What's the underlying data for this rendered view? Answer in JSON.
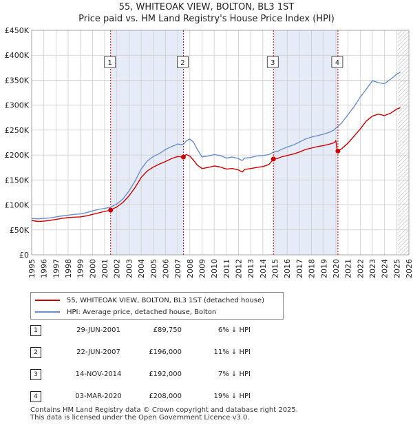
{
  "title_line1": "55, WHITEOAK VIEW, BOLTON, BL3 1ST",
  "title_line2": "Price paid vs. HM Land Registry's House Price Index (HPI)",
  "colors": {
    "property": "#cc0000",
    "hpi": "#6b8fcc",
    "shade": "#e6ecf7",
    "marker_line": "#cc0000",
    "grid": "#cccccc"
  },
  "chart_data": {
    "type": "line",
    "x_range": [
      1995,
      2026
    ],
    "ylim": [
      0,
      450000
    ],
    "y_ticks": [
      {
        "value": 0,
        "label": "£0"
      },
      {
        "value": 50000,
        "label": "£50K"
      },
      {
        "value": 100000,
        "label": "£100K"
      },
      {
        "value": 150000,
        "label": "£150K"
      },
      {
        "value": 200000,
        "label": "£200K"
      },
      {
        "value": 250000,
        "label": "£250K"
      },
      {
        "value": 300000,
        "label": "£300K"
      },
      {
        "value": 350000,
        "label": "£350K"
      },
      {
        "value": 400000,
        "label": "£400K"
      },
      {
        "value": 450000,
        "label": "£450K"
      }
    ],
    "x_ticks": [
      "1995",
      "1996",
      "1997",
      "1998",
      "1999",
      "2000",
      "2001",
      "2002",
      "2003",
      "2004",
      "2005",
      "2006",
      "2007",
      "2008",
      "2009",
      "2010",
      "2011",
      "2012",
      "2013",
      "2014",
      "2015",
      "2016",
      "2017",
      "2018",
      "2019",
      "2020",
      "2021",
      "2022",
      "2023",
      "2024",
      "2025",
      "2026"
    ],
    "grid": true,
    "legend_position": "below",
    "shaded_ranges": [
      [
        2001.49,
        2007.47
      ],
      [
        2014.87,
        2020.17
      ]
    ],
    "hatched_from": 2025.1,
    "series": [
      {
        "name": "55, WHITEOAK VIEW, BOLTON, BL3 1ST (detached house)",
        "color": "#cc0000",
        "points": [
          [
            1995.0,
            69000
          ],
          [
            1995.5,
            67000
          ],
          [
            1996.0,
            67500
          ],
          [
            1996.5,
            69000
          ],
          [
            1997.0,
            71000
          ],
          [
            1997.5,
            73000
          ],
          [
            1998.0,
            74500
          ],
          [
            1998.5,
            75500
          ],
          [
            1999.0,
            76000
          ],
          [
            1999.5,
            78000
          ],
          [
            2000.0,
            81000
          ],
          [
            2000.5,
            84000
          ],
          [
            2001.0,
            87000
          ],
          [
            2001.49,
            89750
          ],
          [
            2002.0,
            96000
          ],
          [
            2002.5,
            105000
          ],
          [
            2003.0,
            118000
          ],
          [
            2003.5,
            135000
          ],
          [
            2004.0,
            155000
          ],
          [
            2004.5,
            168000
          ],
          [
            2005.0,
            176000
          ],
          [
            2005.5,
            182000
          ],
          [
            2006.0,
            187000
          ],
          [
            2006.5,
            193000
          ],
          [
            2007.0,
            197000
          ],
          [
            2007.47,
            196000
          ],
          [
            2007.7,
            201000
          ],
          [
            2008.0,
            198000
          ],
          [
            2008.3,
            190000
          ],
          [
            2008.6,
            180000
          ],
          [
            2009.0,
            173000
          ],
          [
            2009.5,
            175000
          ],
          [
            2010.0,
            178000
          ],
          [
            2010.5,
            176000
          ],
          [
            2011.0,
            172000
          ],
          [
            2011.5,
            173000
          ],
          [
            2012.0,
            170000
          ],
          [
            2012.3,
            166000
          ],
          [
            2012.5,
            171000
          ],
          [
            2013.0,
            173000
          ],
          [
            2013.5,
            175000
          ],
          [
            2014.0,
            177000
          ],
          [
            2014.5,
            181000
          ],
          [
            2014.87,
            192000
          ],
          [
            2015.2,
            193000
          ],
          [
            2015.5,
            196000
          ],
          [
            2016.0,
            199000
          ],
          [
            2016.5,
            202000
          ],
          [
            2017.0,
            206000
          ],
          [
            2017.5,
            211000
          ],
          [
            2018.0,
            214000
          ],
          [
            2018.5,
            217000
          ],
          [
            2019.0,
            219000
          ],
          [
            2019.5,
            222000
          ],
          [
            2019.9,
            225000
          ],
          [
            2020.0,
            229000
          ],
          [
            2020.1,
            212000
          ],
          [
            2020.17,
            208000
          ],
          [
            2020.5,
            213000
          ],
          [
            2021.0,
            224000
          ],
          [
            2021.5,
            238000
          ],
          [
            2022.0,
            252000
          ],
          [
            2022.5,
            268000
          ],
          [
            2023.0,
            278000
          ],
          [
            2023.5,
            282000
          ],
          [
            2024.0,
            279000
          ],
          [
            2024.5,
            284000
          ],
          [
            2025.0,
            292000
          ],
          [
            2025.3,
            295000
          ]
        ]
      },
      {
        "name": "HPI: Average price, detached house, Bolton",
        "color": "#6b8fcc",
        "points": [
          [
            1995.0,
            73000
          ],
          [
            1995.5,
            72000
          ],
          [
            1996.0,
            73000
          ],
          [
            1996.5,
            74000
          ],
          [
            1997.0,
            76000
          ],
          [
            1997.5,
            78000
          ],
          [
            1998.0,
            79500
          ],
          [
            1998.5,
            81000
          ],
          [
            1999.0,
            82000
          ],
          [
            1999.5,
            84500
          ],
          [
            2000.0,
            88000
          ],
          [
            2000.5,
            91000
          ],
          [
            2001.0,
            93000
          ],
          [
            2001.49,
            95500
          ],
          [
            2002.0,
            102000
          ],
          [
            2002.5,
            112000
          ],
          [
            2003.0,
            128000
          ],
          [
            2003.5,
            148000
          ],
          [
            2004.0,
            172000
          ],
          [
            2004.5,
            188000
          ],
          [
            2005.0,
            197000
          ],
          [
            2005.5,
            203000
          ],
          [
            2006.0,
            211000
          ],
          [
            2006.5,
            217000
          ],
          [
            2007.0,
            222000
          ],
          [
            2007.47,
            221000
          ],
          [
            2007.7,
            228000
          ],
          [
            2008.0,
            232000
          ],
          [
            2008.3,
            226000
          ],
          [
            2008.6,
            212000
          ],
          [
            2009.0,
            196000
          ],
          [
            2009.5,
            198000
          ],
          [
            2010.0,
            201000
          ],
          [
            2010.5,
            199000
          ],
          [
            2011.0,
            194000
          ],
          [
            2011.5,
            196000
          ],
          [
            2012.0,
            193000
          ],
          [
            2012.3,
            189000
          ],
          [
            2012.5,
            194000
          ],
          [
            2013.0,
            195000
          ],
          [
            2013.5,
            198000
          ],
          [
            2014.0,
            199000
          ],
          [
            2014.5,
            201000
          ],
          [
            2014.87,
            206000
          ],
          [
            2015.2,
            207000
          ],
          [
            2015.5,
            211000
          ],
          [
            2016.0,
            216000
          ],
          [
            2016.5,
            220000
          ],
          [
            2017.0,
            226000
          ],
          [
            2017.5,
            232000
          ],
          [
            2018.0,
            236000
          ],
          [
            2018.5,
            239000
          ],
          [
            2019.0,
            242000
          ],
          [
            2019.5,
            246000
          ],
          [
            2019.9,
            251000
          ],
          [
            2020.0,
            254000
          ],
          [
            2020.1,
            256000
          ],
          [
            2020.17,
            257000
          ],
          [
            2020.5,
            265000
          ],
          [
            2021.0,
            281000
          ],
          [
            2021.5,
            297000
          ],
          [
            2022.0,
            316000
          ],
          [
            2022.5,
            332000
          ],
          [
            2023.0,
            349000
          ],
          [
            2023.5,
            345000
          ],
          [
            2024.0,
            343000
          ],
          [
            2024.5,
            352000
          ],
          [
            2025.0,
            362000
          ],
          [
            2025.3,
            366000
          ]
        ]
      }
    ],
    "sales": [
      {
        "num": "1",
        "x": 2001.49,
        "price": 89750
      },
      {
        "num": "2",
        "x": 2007.47,
        "price": 196000
      },
      {
        "num": "3",
        "x": 2014.87,
        "price": 192000
      },
      {
        "num": "4",
        "x": 2020.17,
        "price": 208000
      }
    ]
  },
  "legend": {
    "property_label": "55, WHITEOAK VIEW, BOLTON, BL3 1ST (detached house)",
    "hpi_label": "HPI: Average price, detached house, Bolton"
  },
  "transactions": [
    {
      "num": "1",
      "date": "29-JUN-2001",
      "price": "£89,750",
      "hpi": "6% ↓ HPI"
    },
    {
      "num": "2",
      "date": "22-JUN-2007",
      "price": "£196,000",
      "hpi": "11% ↓ HPI"
    },
    {
      "num": "3",
      "date": "14-NOV-2014",
      "price": "£192,000",
      "hpi": "7% ↓ HPI"
    },
    {
      "num": "4",
      "date": "03-MAR-2020",
      "price": "£208,000",
      "hpi": "19% ↓ HPI"
    }
  ],
  "footer_line1": "Contains HM Land Registry data © Crown copyright and database right 2025.",
  "footer_line2": "This data is licensed under the Open Government Licence v3.0."
}
